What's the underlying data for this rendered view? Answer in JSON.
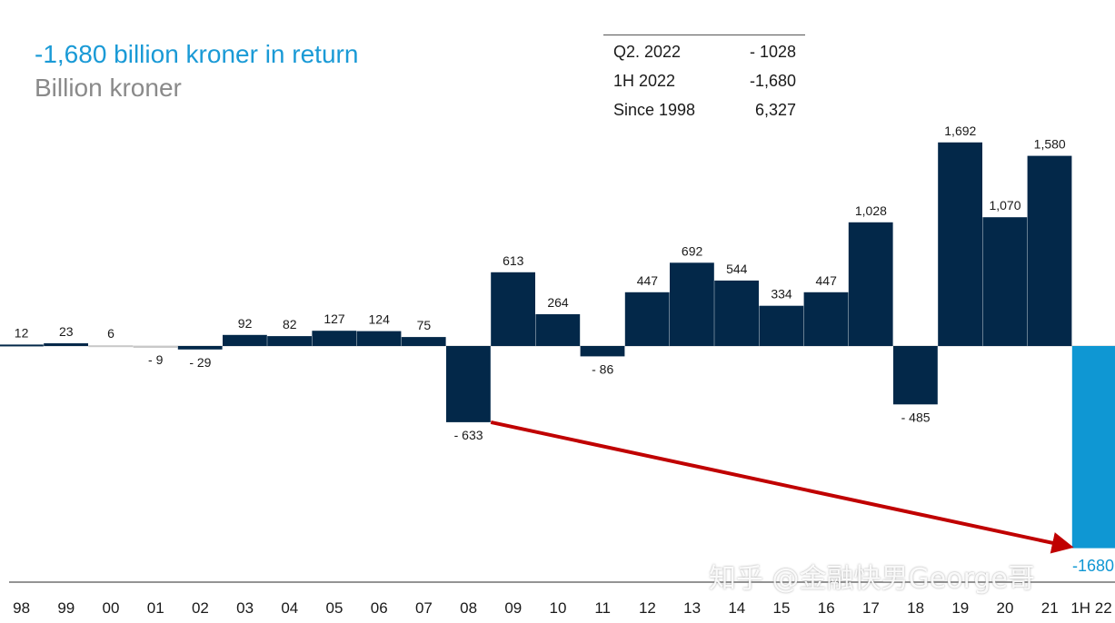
{
  "title": "-1,680 billion kroner in return",
  "subtitle": "Billion kroner",
  "summary": [
    {
      "label": "Q2. 2022",
      "value": "- 1028"
    },
    {
      "label": "1H 2022",
      "value": "-1,680"
    },
    {
      "label": "Since 1998",
      "value": "6,327"
    }
  ],
  "watermark": "知乎 @金融快男George哥",
  "colors": {
    "positive": "#032849",
    "negative": "#032849",
    "highlight": "#0f97d3",
    "small_bar": "#c8c8c8",
    "arrow": "#c00000",
    "title": "#1a9ad6",
    "subtitle": "#8a8a8a"
  },
  "chart_data": {
    "type": "bar",
    "categories": [
      "98",
      "99",
      "00",
      "01",
      "02",
      "03",
      "04",
      "05",
      "06",
      "07",
      "08",
      "09",
      "10",
      "11",
      "12",
      "13",
      "14",
      "15",
      "16",
      "17",
      "18",
      "19",
      "20",
      "21",
      "1H 22"
    ],
    "values": [
      12,
      23,
      6,
      -9,
      -29,
      92,
      82,
      127,
      124,
      75,
      -633,
      613,
      264,
      -86,
      447,
      692,
      544,
      334,
      447,
      1028,
      -485,
      1692,
      1070,
      1580,
      -1680
    ],
    "labels": [
      "12",
      "23",
      "6",
      "- 9",
      "- 29",
      "92",
      "82",
      "127",
      "124",
      "75",
      "- 633",
      "613",
      "264",
      "- 86",
      "447",
      "692",
      "544",
      "334",
      "447",
      "1,028",
      "- 485",
      "1,692",
      "1,070",
      "1,580",
      "-1680"
    ],
    "ylim": [
      -1700,
      1700
    ],
    "highlight_index": 24,
    "annotation": {
      "type": "arrow",
      "from_category": "08",
      "to_category": "1H 22"
    },
    "grid": false
  }
}
